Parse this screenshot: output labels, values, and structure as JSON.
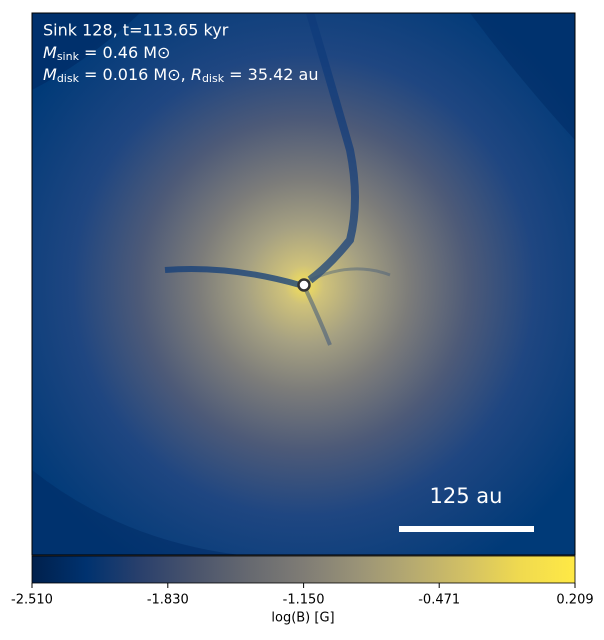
{
  "chart_data": {
    "type": "colormap",
    "annotations": {
      "sink": "Sink 128, t=113.65 kyr",
      "mass_sink": {
        "symbol": "M",
        "subscript": "sink",
        "rest": " = 0.46 M⊙"
      },
      "mass_disk": {
        "symbol": "M",
        "subscript": "disk",
        "rest": " = 0.016 M⊙, ",
        "symbol2": "R",
        "subscript2": "disk",
        "rest2": " = 35.42 au"
      },
      "scale_bar": "125 au"
    },
    "colorbar_label": "log(B) [G]",
    "colormap": "cividis",
    "clim": [
      -2.51,
      0.209
    ],
    "cticks": [
      {
        "value": -2.51,
        "label": "-2.510"
      },
      {
        "value": -1.83,
        "label": "-1.830"
      },
      {
        "value": -1.15,
        "label": "-1.150"
      },
      -0.471,
      0.209
    ]
  }
}
